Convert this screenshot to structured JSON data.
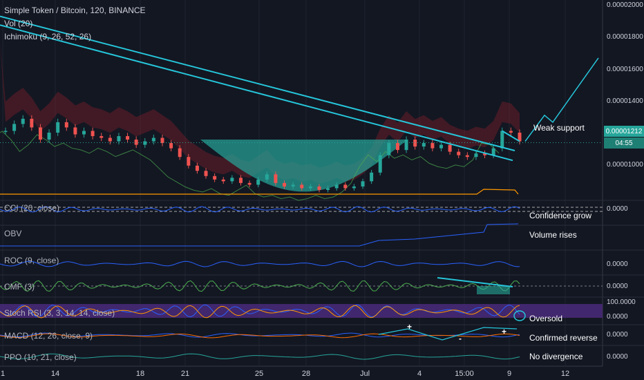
{
  "header": {
    "symbol_line": "Simple Token / Bitcoin, 120, BINANCE",
    "vol_label": "Vol (20)",
    "ichimoku_label": "Ichimoku (9, 26, 52, 26)"
  },
  "panes": {
    "cci": "CCI (20, close)",
    "obv": "OBV",
    "roc": "ROC (9, close)",
    "cmf": "CMF (3)",
    "stoch": "Stoch RSI (3, 3, 14, 14, close)",
    "macd": "MACD (12, 26, close, 9)",
    "ppo": "PPO (10, 21, close)"
  },
  "annotations": {
    "weak_support": "Weak support",
    "confidence": "Confidence grow",
    "volume": "Volume rises",
    "oversold": "Oversold",
    "macd": "Confirmed reverse",
    "ppo": "No divergence",
    "macd_plus_1": "+",
    "macd_minus": "-",
    "macd_plus_2": "+"
  },
  "price_axis": {
    "ticks": [
      "0.00002000",
      "0.00001800",
      "0.00001600",
      "0.00001400",
      "0.00001000"
    ],
    "current_price": "0.00001212",
    "countdown": "04:55"
  },
  "pane_axis": {
    "cci": "0.0000",
    "roc": "0.0000",
    "cmf": "0.0000",
    "stoch": "100.0000",
    "stoch_zero": "0.0000",
    "macd": "0.0000",
    "ppo": "0.0000"
  },
  "time_axis": [
    "1",
    "14",
    "18",
    "21",
    "25",
    "28",
    "Jul",
    "4",
    "15:00",
    "9",
    "12"
  ],
  "colors": {
    "background": "#131722",
    "trendline": "#26c6da",
    "cloud_red": "#7b1e2b",
    "cloud_green": "#1b5e20",
    "cup_fill": "#26a69a",
    "bull": "#26a69a",
    "bear": "#ef5350",
    "stoch_band": "#4a2a7a"
  },
  "chart_data": {
    "type": "candlestick",
    "title": "Simple Token / Bitcoin, 120, BINANCE",
    "ylim": [
      8.8e-06,
      2.01e-05
    ],
    "x_ticks": [
      "1",
      "14",
      "18",
      "21",
      "25",
      "28",
      "Jul",
      "4",
      "15:00",
      "9",
      "12"
    ],
    "price_path": [
      1.28e-05,
      1.32e-05,
      1.35e-05,
      1.3e-05,
      1.23e-05,
      1.27e-05,
      1.33e-05,
      1.3e-05,
      1.26e-05,
      1.28e-05,
      1.25e-05,
      1.24e-05,
      1.22e-05,
      1.25e-05,
      1.23e-05,
      1.2e-05,
      1.22e-05,
      1.24e-05,
      1.21e-05,
      1.18e-05,
      1.13e-05,
      1.08e-05,
      1.05e-05,
      1.02e-05,
      1e-05,
      9.9e-06,
      1.01e-05,
      9.8e-06,
      9.7e-06,
      1e-05,
      1.03e-05,
      9.8e-06,
      9.6e-06,
      9.7e-06,
      9.5e-06,
      9.6e-06,
      9.4e-06,
      9.5e-06,
      9.7e-06,
      9.5e-06,
      9.6e-06,
      9.9e-06,
      1.04e-05,
      1.14e-05,
      1.21e-05,
      1.17e-05,
      1.23e-05,
      1.19e-05,
      1.21e-05,
      1.18e-05,
      1.2e-05,
      1.16e-05,
      1.14e-05,
      1.13e-05,
      1.15e-05,
      1.14e-05,
      1.18e-05,
      1.28e-05,
      1.27e-05,
      1.22e-05
    ],
    "trendlines": [
      {
        "from": [
          0,
          1.89e-05
        ],
        "to": [
          59,
          1.11e-05
        ]
      },
      {
        "from": [
          57,
          1.28e-05
        ],
        "to": [
          59,
          1.22e-05
        ]
      }
    ],
    "projection": [
      1.22e-05,
      1.37e-05,
      1.33e-05,
      1.7e-05
    ],
    "current_price": 1.212e-05
  }
}
